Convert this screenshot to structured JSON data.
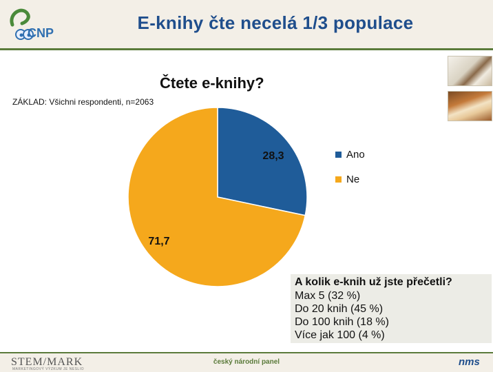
{
  "header": {
    "logo_text": "CNP",
    "title": "E-knihy čte necelá 1/3 populace"
  },
  "chart_data": {
    "type": "pie",
    "title": "Čtete e-knihy?",
    "note": "ZÁKLAD: Všichni respondenti, n=2063",
    "slices": [
      {
        "label": "Ano",
        "value": 28.3,
        "display": "28,3",
        "color": "#1f5c99"
      },
      {
        "label": "Ne",
        "value": 71.7,
        "display": "71,7",
        "color": "#f5a81c"
      }
    ],
    "legend_position": "right"
  },
  "info_box": {
    "heading": "A kolik e-knih už jste přečetli?",
    "lines": [
      "Max 5 (32 %)",
      "Do 20 knih (45 %)",
      "Do 100 knih (18 %)",
      "Více jak 100 (4 %)"
    ]
  },
  "footer": {
    "left_logo": "STEM/MARK",
    "left_tagline": "MARKETINGOVÝ VÝZKUM JE NESLIO",
    "center_text": "český národní panel",
    "right_logo": "nms"
  },
  "colors": {
    "accent_green": "#5a7a3a",
    "title_blue": "#1f4e8c",
    "header_bg": "#f3efe7"
  }
}
